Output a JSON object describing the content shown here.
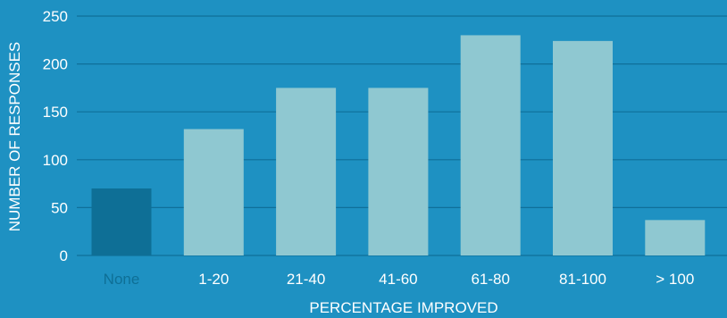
{
  "chart_data": {
    "type": "bar",
    "xlabel": "PERCENTAGE IMPROVED",
    "ylabel": "NUMBER OF RESPONSES",
    "categories": [
      "None",
      "1-20",
      "21-40",
      "41-60",
      "61-80",
      "81-100",
      "> 100"
    ],
    "values": [
      70,
      132,
      175,
      175,
      230,
      224,
      37
    ],
    "ylim": [
      0,
      250
    ],
    "yticks": [
      0,
      50,
      100,
      150,
      200,
      250
    ],
    "grid": true,
    "colors": {
      "background": "#1e91c2",
      "highlight_bar": "#0e6f96",
      "bar": "#8fc8d1",
      "gridline": "#0f6f99",
      "text": "#ffffff",
      "highlight_label": "#0e6f96"
    }
  }
}
